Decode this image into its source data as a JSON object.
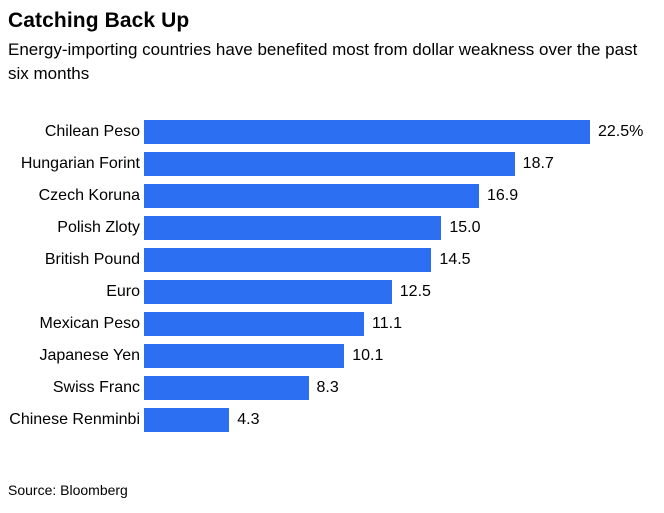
{
  "header": {
    "title": "Catching Back Up",
    "subtitle": "Energy-importing countries have benefited most from dollar weakness over the past six months"
  },
  "chart_data": {
    "type": "bar",
    "orientation": "horizontal",
    "title": "Catching Back Up",
    "subtitle": "Energy-importing countries have benefited most from dollar weakness over the past six months",
    "categories": [
      "Chilean Peso",
      "Hungarian Forint",
      "Czech Koruna",
      "Polish Zloty",
      "British Pound",
      "Euro",
      "Mexican Peso",
      "Japanese Yen",
      "Swiss Franc",
      "Chinese Renminbi"
    ],
    "values": [
      22.5,
      18.7,
      16.9,
      15.0,
      14.5,
      12.5,
      11.1,
      10.1,
      8.3,
      4.3
    ],
    "value_labels": [
      "22.5%",
      "18.7",
      "16.9",
      "15.0",
      "14.5",
      "12.5",
      "11.1",
      "10.1",
      "8.3",
      "4.3"
    ],
    "xlabel": "",
    "ylabel": "",
    "xlim": [
      0,
      22.5
    ],
    "bar_color": "#2D6FF2",
    "grid": false,
    "legend": false,
    "value_label_position": "right-of-bar"
  },
  "footer": {
    "source": "Source: Bloomberg"
  }
}
